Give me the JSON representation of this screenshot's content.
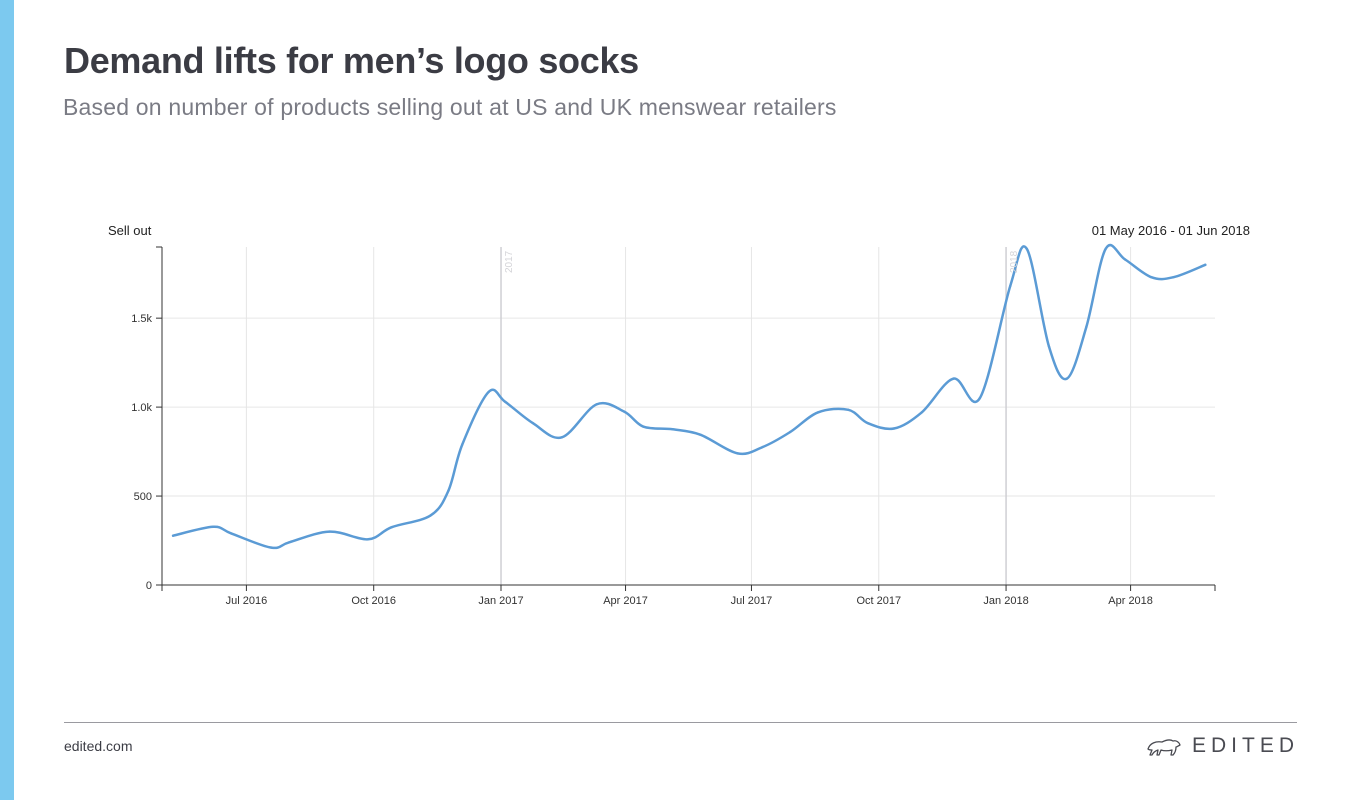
{
  "header": {
    "title": "Demand lifts for men’s logo socks",
    "subtitle": "Based on number of products selling out at US and UK menswear retailers"
  },
  "chart_data": {
    "type": "line",
    "ylabel": "Sell out",
    "date_range": "01 May 2016 - 01 Jun 2018",
    "ylim": [
      0,
      1900
    ],
    "y_ticks": [
      0,
      500,
      1000,
      1500
    ],
    "y_tick_labels": [
      "0",
      "500",
      "1.0k",
      "1.5k"
    ],
    "x_ticks": [
      "2016-07-01",
      "2016-10-01",
      "2017-01-01",
      "2017-04-01",
      "2017-07-01",
      "2017-10-01",
      "2018-01-01",
      "2018-04-01"
    ],
    "x_tick_labels": [
      "Jul 2016",
      "Oct 2016",
      "Jan 2017",
      "Apr 2017",
      "Jul 2017",
      "Oct 2017",
      "Jan 2018",
      "Apr 2018"
    ],
    "year_markers": [
      {
        "date": "2017-01-01",
        "label": "2017"
      },
      {
        "date": "2018-01-01",
        "label": "2018"
      }
    ],
    "grid": true,
    "line_color": "#5b9bd5",
    "series": [
      {
        "x": [
          "2016-05-09",
          "2016-06-07",
          "2016-06-20",
          "2016-07-19",
          "2016-08-01",
          "2016-08-30",
          "2016-09-27",
          "2016-10-14",
          "2016-11-11",
          "2016-11-24",
          "2016-12-04",
          "2016-12-23",
          "2017-01-04",
          "2017-01-24",
          "2017-02-14",
          "2017-03-11",
          "2017-03-31",
          "2017-04-14",
          "2017-05-05",
          "2017-05-25",
          "2017-06-21",
          "2017-07-09",
          "2017-07-29",
          "2017-08-18",
          "2017-09-09",
          "2017-09-23",
          "2017-10-12",
          "2017-11-01",
          "2017-11-24",
          "2017-12-13",
          "2018-01-04",
          "2018-01-16",
          "2018-02-01",
          "2018-02-14",
          "2018-02-28",
          "2018-03-14",
          "2018-03-28",
          "2018-04-16",
          "2018-05-02",
          "2018-05-25"
        ],
        "y": [
          277,
          327,
          290,
          210,
          240,
          300,
          257,
          325,
          390,
          530,
          790,
          1085,
          1030,
          910,
          830,
          1015,
          975,
          890,
          875,
          845,
          740,
          775,
          860,
          970,
          985,
          910,
          880,
          970,
          1160,
          1050,
          1680,
          1890,
          1340,
          1160,
          1450,
          1890,
          1830,
          1730,
          1730,
          1800
        ]
      }
    ]
  },
  "footer": {
    "url": "edited.com",
    "brand": "EDITED",
    "brand_icon": "polar-bear-icon"
  },
  "colors": {
    "accent": "#7cc9ef",
    "line": "#5b9bd5",
    "grid": "#e6e6e6"
  }
}
